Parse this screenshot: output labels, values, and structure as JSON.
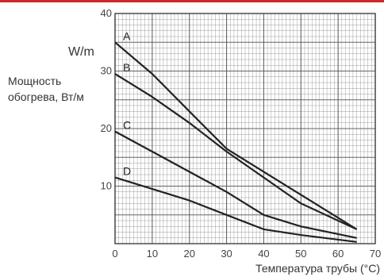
{
  "page": {
    "accent_color": "#d0262c"
  },
  "chart_data": {
    "type": "line",
    "title": "",
    "xlabel": "Температура трубы (°C)",
    "ylabel": "Мощность обогрева, Вт/м",
    "ylabel_lines": [
      "Мощность",
      "обогрева, Вт/м"
    ],
    "unit_label": "W/m",
    "xlim": [
      0,
      70
    ],
    "ylim": [
      0,
      40
    ],
    "x_ticks": [
      0,
      10,
      20,
      30,
      40,
      50,
      60,
      70
    ],
    "y_ticks": [
      10,
      20,
      30,
      40
    ],
    "grid": true,
    "grid_minor_x": 1,
    "grid_minor_y": 1,
    "line_color": "#222222",
    "grid_color": "#555555",
    "series": [
      {
        "name": "A",
        "x": [
          0,
          10,
          20,
          30,
          40,
          50,
          65
        ],
        "y": [
          35,
          29.5,
          23,
          16.5,
          12.5,
          8.5,
          2.5
        ]
      },
      {
        "name": "B",
        "x": [
          0,
          10,
          20,
          30,
          40,
          50,
          65
        ],
        "y": [
          29.5,
          25.5,
          21,
          16,
          11.5,
          7,
          2.5
        ]
      },
      {
        "name": "C",
        "x": [
          0,
          10,
          20,
          30,
          40,
          50,
          65
        ],
        "y": [
          19.5,
          16,
          12.5,
          9,
          5,
          3,
          1
        ]
      },
      {
        "name": "D",
        "x": [
          0,
          10,
          20,
          30,
          40,
          50,
          65
        ],
        "y": [
          11.5,
          9.5,
          7.5,
          5,
          2.5,
          1.5,
          0.3
        ]
      }
    ]
  }
}
